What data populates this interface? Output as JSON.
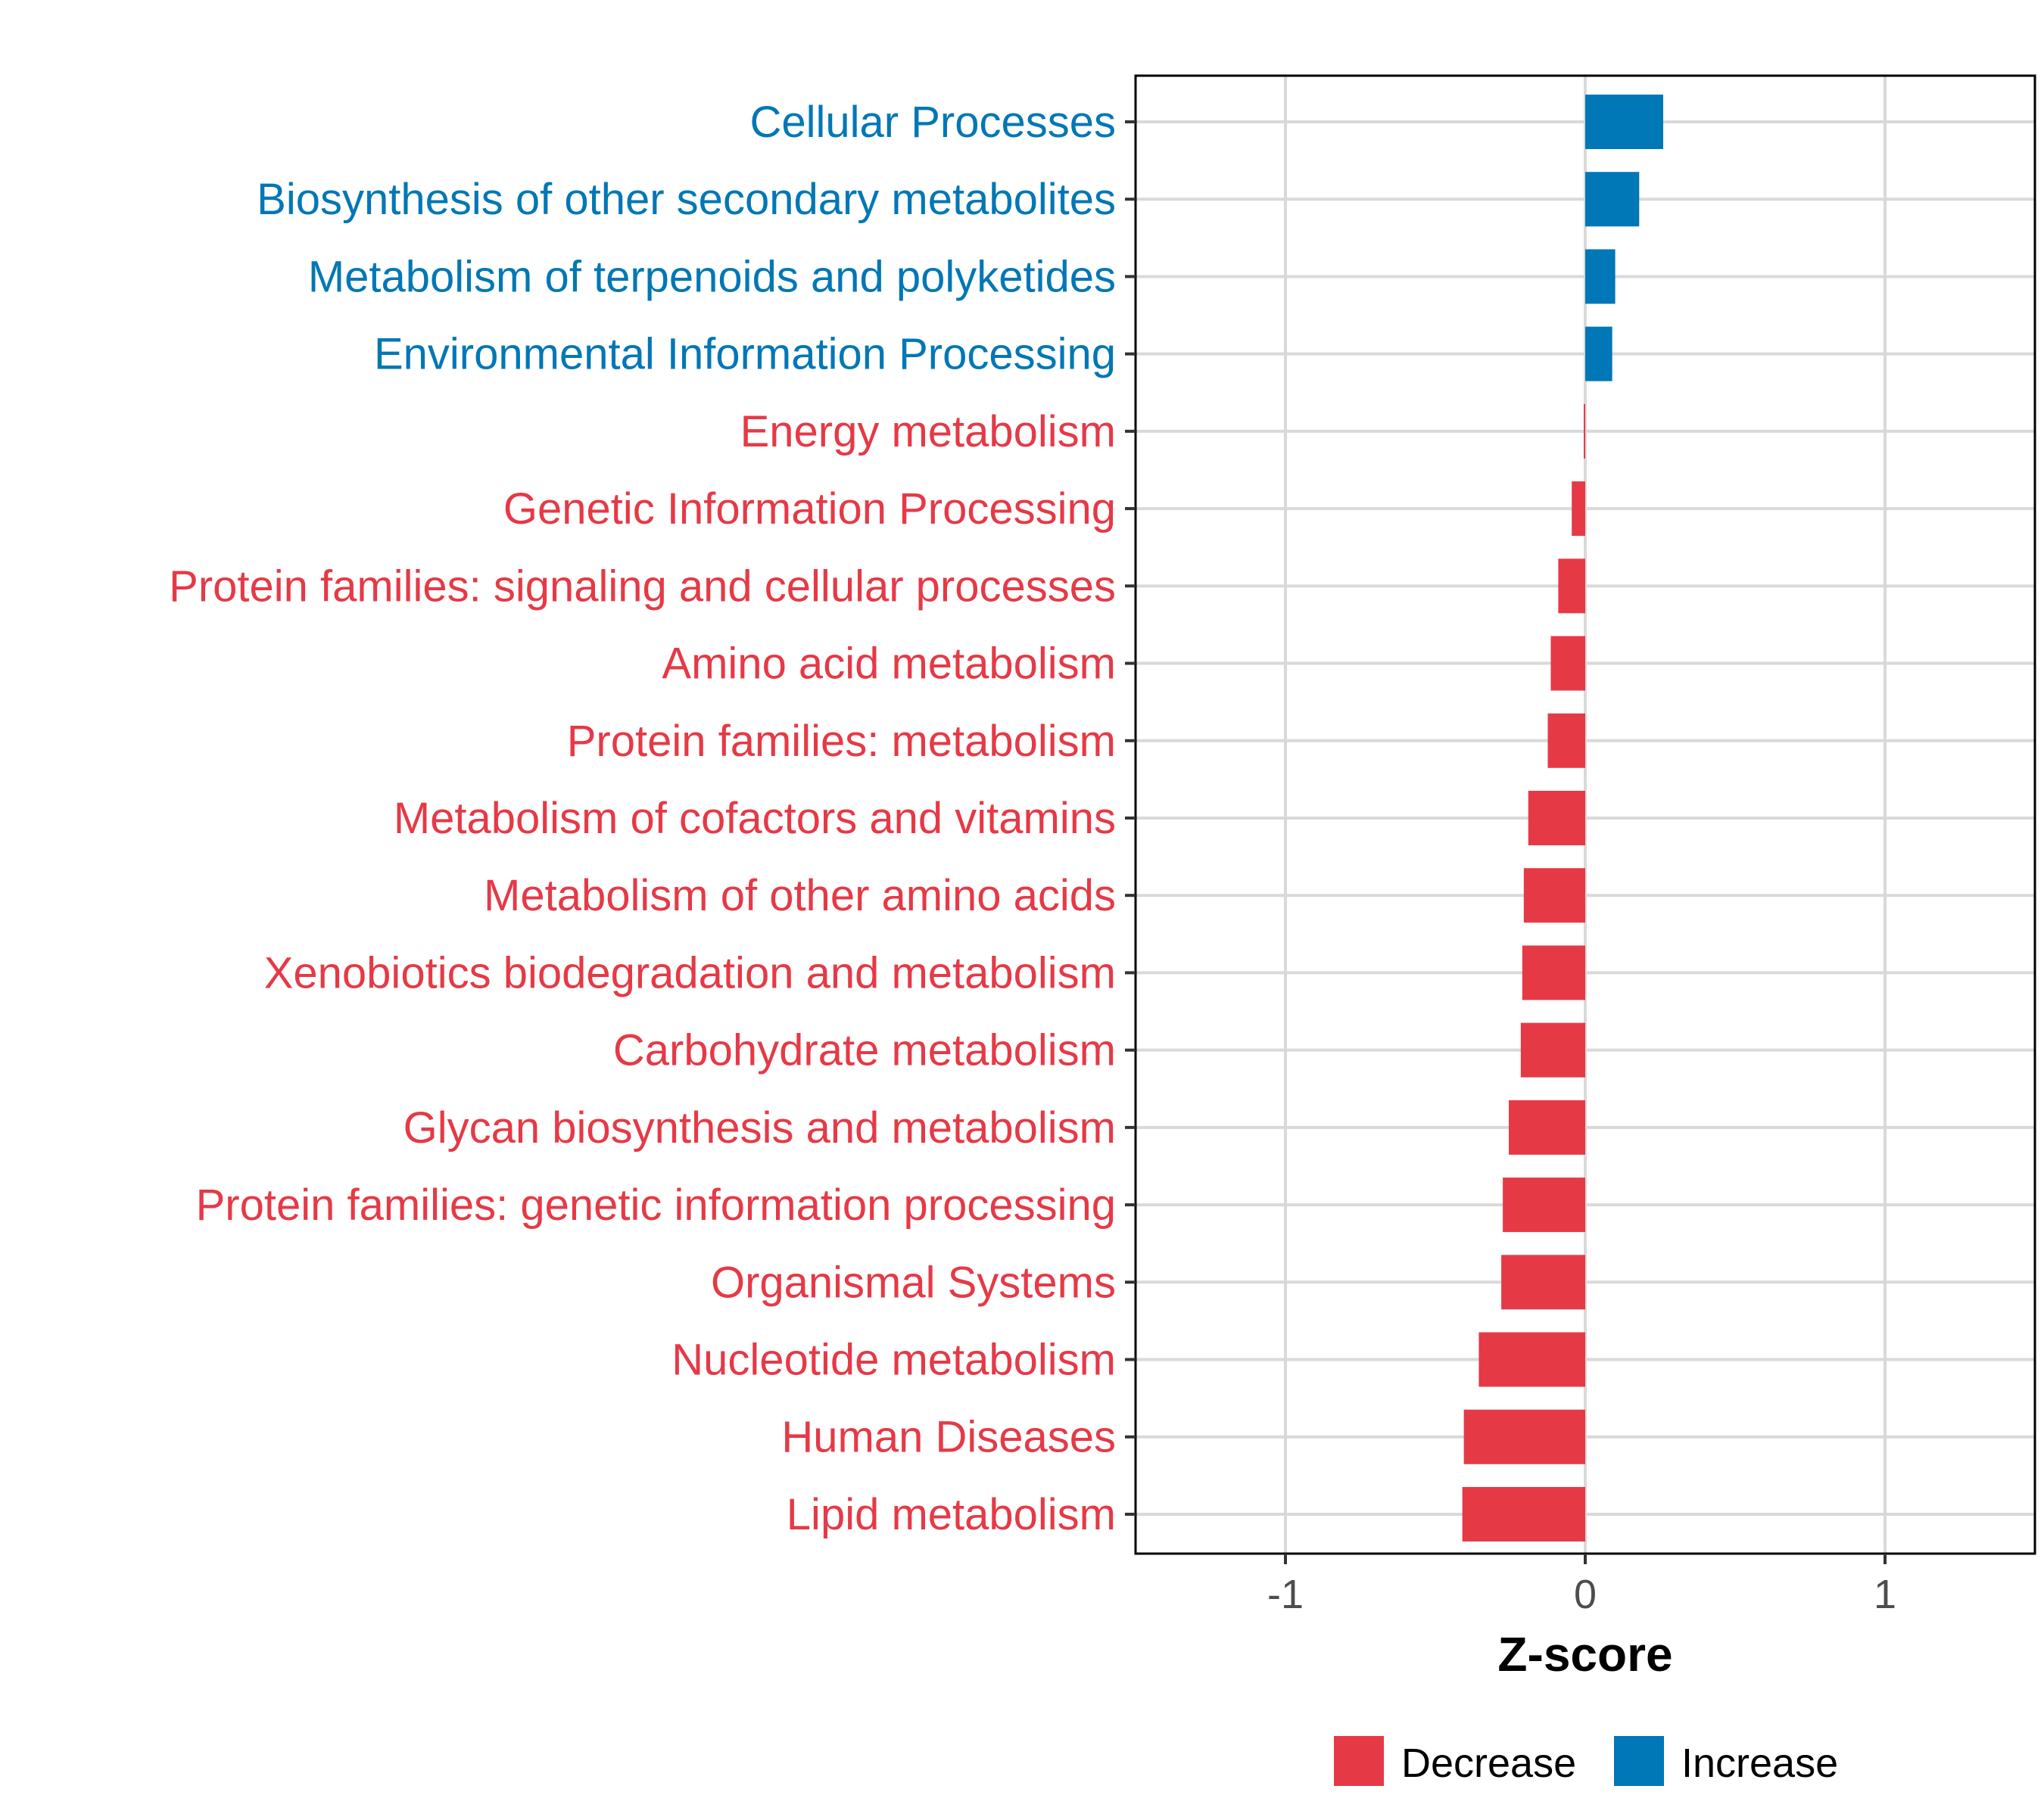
{
  "chart_data": {
    "type": "bar",
    "orientation": "horizontal",
    "title": "",
    "xlabel": "Z-score",
    "ylabel": "",
    "xlim": [
      -1.5,
      1.5
    ],
    "xticks": [
      -1,
      0,
      1
    ],
    "xtick_labels": [
      "-1",
      "0",
      "1"
    ],
    "grid": true,
    "categories": [
      "Cellular Processes",
      "Biosynthesis of other secondary metabolites",
      "Metabolism of terpenoids and polyketides",
      "Environmental Information Processing",
      "Energy metabolism",
      "Genetic Information Processing",
      "Protein families: signaling and cellular processes",
      "Amino acid metabolism",
      "Protein families: metabolism",
      "Metabolism of cofactors and vitamins",
      "Metabolism of other amino acids",
      "Xenobiotics biodegradation and metabolism",
      "Carbohydrate metabolism",
      "Glycan biosynthesis and metabolism",
      "Protein families: genetic information processing",
      "Organismal Systems",
      "Nucleotide metabolism",
      "Human Diseases",
      "Lipid metabolism"
    ],
    "values": [
      0.26,
      0.18,
      0.1,
      0.09,
      -0.005,
      -0.045,
      -0.09,
      -0.115,
      -0.125,
      -0.19,
      -0.205,
      -0.21,
      -0.215,
      -0.255,
      -0.275,
      -0.28,
      -0.355,
      -0.405,
      -0.41
    ],
    "groups": [
      "Increase",
      "Increase",
      "Increase",
      "Increase",
      "Decrease",
      "Decrease",
      "Decrease",
      "Decrease",
      "Decrease",
      "Decrease",
      "Decrease",
      "Decrease",
      "Decrease",
      "Decrease",
      "Decrease",
      "Decrease",
      "Decrease",
      "Decrease",
      "Decrease"
    ],
    "legend": {
      "placement": "bottom",
      "entries": [
        {
          "label": "Decrease",
          "color": "#E63946"
        },
        {
          "label": "Increase",
          "color": "#0077B6"
        }
      ]
    },
    "colors": {
      "Decrease": "#E63946",
      "Increase": "#0077B6",
      "grid": "#d9d9d9",
      "axis_text": "#4d4d4d",
      "frame": "#000000"
    }
  }
}
